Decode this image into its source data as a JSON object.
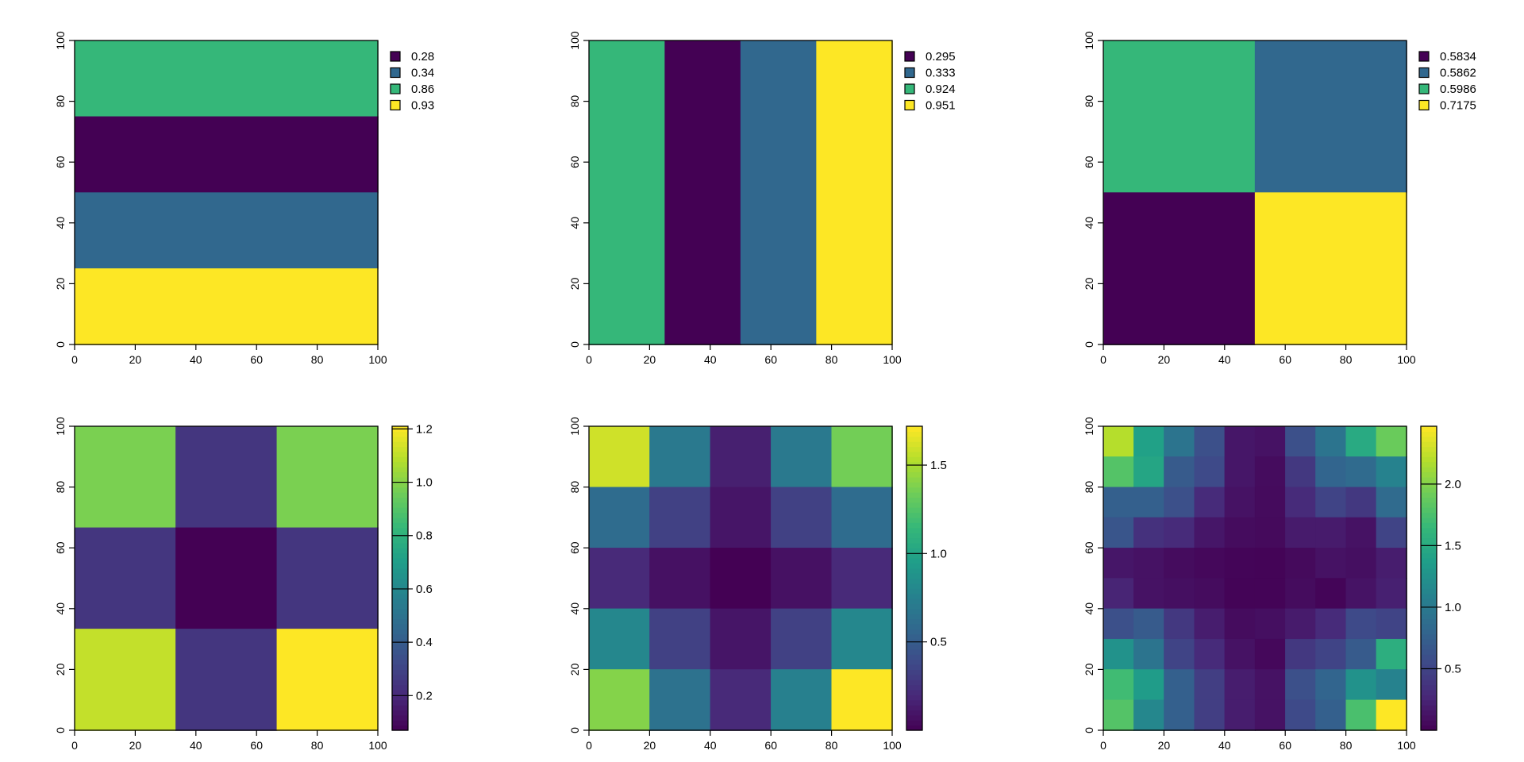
{
  "chart_data": [
    {
      "type": "heatmap",
      "panel": "top-left",
      "legend": "categorical",
      "xlim": [
        0,
        100
      ],
      "ylim": [
        0,
        100
      ],
      "x_ticks": [
        "0",
        "20",
        "40",
        "60",
        "80",
        "100"
      ],
      "y_ticks": [
        "0",
        "20",
        "40",
        "60",
        "80",
        "100"
      ],
      "rows": 4,
      "cols": 1,
      "grid": [
        [
          0.86
        ],
        [
          0.28
        ],
        [
          0.34
        ],
        [
          0.93
        ]
      ],
      "legend_entries": [
        {
          "label": "0.28",
          "color": "#440154"
        },
        {
          "label": "0.34",
          "color": "#31688E"
        },
        {
          "label": "0.86",
          "color": "#35B779"
        },
        {
          "label": "0.93",
          "color": "#FDE725"
        }
      ]
    },
    {
      "type": "heatmap",
      "panel": "top-middle",
      "legend": "categorical",
      "xlim": [
        0,
        100
      ],
      "ylim": [
        0,
        100
      ],
      "x_ticks": [
        "0",
        "20",
        "40",
        "60",
        "80",
        "100"
      ],
      "y_ticks": [
        "0",
        "20",
        "40",
        "60",
        "80",
        "100"
      ],
      "rows": 1,
      "cols": 4,
      "grid": [
        [
          0.924,
          0.295,
          0.333,
          0.951
        ]
      ],
      "legend_entries": [
        {
          "label": "0.295",
          "color": "#440154"
        },
        {
          "label": "0.333",
          "color": "#31688E"
        },
        {
          "label": "0.924",
          "color": "#35B779"
        },
        {
          "label": "0.951",
          "color": "#FDE725"
        }
      ]
    },
    {
      "type": "heatmap",
      "panel": "top-right",
      "legend": "categorical",
      "xlim": [
        0,
        100
      ],
      "ylim": [
        0,
        100
      ],
      "x_ticks": [
        "0",
        "20",
        "40",
        "60",
        "80",
        "100"
      ],
      "y_ticks": [
        "0",
        "20",
        "40",
        "60",
        "80",
        "100"
      ],
      "rows": 2,
      "cols": 2,
      "grid": [
        [
          0.5986,
          0.5862
        ],
        [
          0.5834,
          0.7175
        ]
      ],
      "legend_entries": [
        {
          "label": "0.5834",
          "color": "#440154"
        },
        {
          "label": "0.5862",
          "color": "#31688E"
        },
        {
          "label": "0.5986",
          "color": "#35B779"
        },
        {
          "label": "0.7175",
          "color": "#FDE725"
        }
      ]
    },
    {
      "type": "heatmap",
      "panel": "bottom-left",
      "legend": "continuous",
      "xlim": [
        0,
        100
      ],
      "ylim": [
        0,
        100
      ],
      "x_ticks": [
        "0",
        "20",
        "40",
        "60",
        "80",
        "100"
      ],
      "y_ticks": [
        "0",
        "20",
        "40",
        "60",
        "80",
        "100"
      ],
      "rows": 3,
      "cols": 3,
      "value_range": [
        0.07,
        1.21
      ],
      "grid": [
        [
          0.98,
          0.25,
          0.98
        ],
        [
          0.25,
          0.07,
          0.25
        ],
        [
          1.11,
          0.25,
          1.21
        ]
      ],
      "colorbar_ticks": [
        {
          "value": 0.2,
          "label": "0.2"
        },
        {
          "value": 0.4,
          "label": "0.4"
        },
        {
          "value": 0.6,
          "label": "0.6"
        },
        {
          "value": 0.8,
          "label": "0.8"
        },
        {
          "value": 1.0,
          "label": "1.0"
        },
        {
          "value": 1.2,
          "label": "1.2"
        }
      ]
    },
    {
      "type": "heatmap",
      "panel": "bottom-middle",
      "legend": "continuous",
      "xlim": [
        0,
        100
      ],
      "ylim": [
        0,
        100
      ],
      "x_ticks": [
        "0",
        "20",
        "40",
        "60",
        "80",
        "100"
      ],
      "y_ticks": [
        "0",
        "20",
        "40",
        "60",
        "80",
        "100"
      ],
      "rows": 5,
      "cols": 5,
      "value_range": [
        0.0,
        1.72
      ],
      "grid": [
        [
          1.6,
          0.7,
          0.15,
          0.7,
          1.35
        ],
        [
          0.6,
          0.33,
          0.1,
          0.33,
          0.6
        ],
        [
          0.2,
          0.08,
          0.0,
          0.08,
          0.2
        ],
        [
          0.8,
          0.33,
          0.1,
          0.33,
          0.8
        ],
        [
          1.4,
          0.65,
          0.2,
          0.75,
          1.72
        ]
      ],
      "colorbar_ticks": [
        {
          "value": 0.5,
          "label": "0.5"
        },
        {
          "value": 1.0,
          "label": "1.0"
        },
        {
          "value": 1.5,
          "label": "1.5"
        }
      ]
    },
    {
      "type": "heatmap",
      "panel": "bottom-right",
      "legend": "continuous",
      "xlim": [
        0,
        100
      ],
      "ylim": [
        0,
        100
      ],
      "x_ticks": [
        "0",
        "20",
        "40",
        "60",
        "80",
        "100"
      ],
      "y_ticks": [
        "0",
        "20",
        "40",
        "60",
        "80",
        "100"
      ],
      "rows": 10,
      "cols": 10,
      "value_range": [
        0.0,
        2.47
      ],
      "grid": [
        [
          2.2,
          1.4,
          0.95,
          0.6,
          0.15,
          0.12,
          0.6,
          0.95,
          1.5,
          1.9
        ],
        [
          1.8,
          1.45,
          0.7,
          0.55,
          0.15,
          0.08,
          0.4,
          0.8,
          0.85,
          1.1
        ],
        [
          0.75,
          0.75,
          0.6,
          0.3,
          0.12,
          0.07,
          0.3,
          0.5,
          0.4,
          0.85
        ],
        [
          0.65,
          0.35,
          0.3,
          0.15,
          0.08,
          0.06,
          0.18,
          0.18,
          0.12,
          0.5
        ],
        [
          0.15,
          0.12,
          0.08,
          0.05,
          0.03,
          0.02,
          0.06,
          0.12,
          0.1,
          0.2
        ],
        [
          0.25,
          0.12,
          0.1,
          0.08,
          0.02,
          0.02,
          0.08,
          0.03,
          0.13,
          0.22
        ],
        [
          0.6,
          0.7,
          0.4,
          0.2,
          0.08,
          0.1,
          0.18,
          0.3,
          0.55,
          0.5
        ],
        [
          1.25,
          0.95,
          0.5,
          0.3,
          0.12,
          0.05,
          0.4,
          0.5,
          0.7,
          1.55
        ],
        [
          1.7,
          1.35,
          0.75,
          0.45,
          0.2,
          0.12,
          0.6,
          0.8,
          1.25,
          1.1
        ],
        [
          1.8,
          1.15,
          0.75,
          0.45,
          0.2,
          0.12,
          0.55,
          0.75,
          1.75,
          2.47
        ]
      ],
      "colorbar_ticks": [
        {
          "value": 0.5,
          "label": "0.5"
        },
        {
          "value": 1.0,
          "label": "1.0"
        },
        {
          "value": 1.5,
          "label": "1.5"
        },
        {
          "value": 2.0,
          "label": "2.0"
        }
      ]
    }
  ]
}
